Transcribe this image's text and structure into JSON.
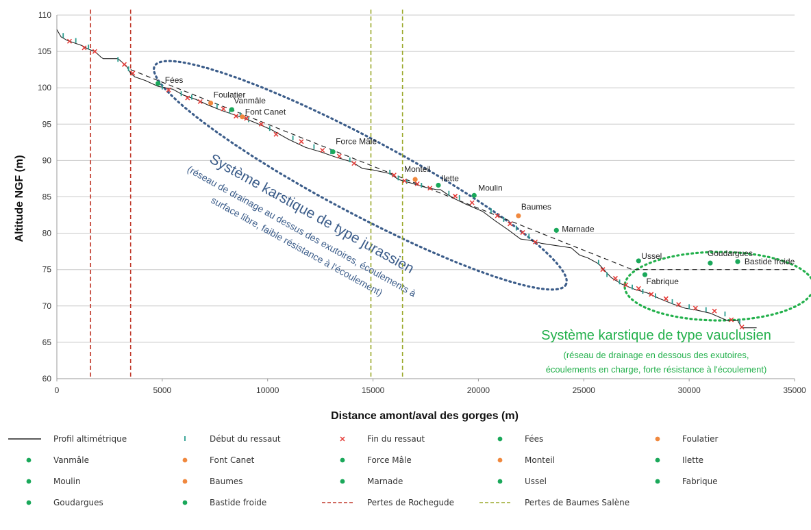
{
  "chart_data": {
    "type": "line",
    "xlabel": "Distance amont/aval des gorges (m)",
    "ylabel": "Altitude NGF (m)",
    "xlim": [
      0,
      35000
    ],
    "ylim": [
      60,
      110
    ],
    "xticks": [
      0,
      5000,
      10000,
      15000,
      20000,
      25000,
      30000,
      35000
    ],
    "xtick_labels": [
      "0",
      "5000",
      "10000",
      "15000",
      "20000",
      "25000",
      "30000",
      "35000"
    ],
    "yticks": [
      60,
      65,
      70,
      75,
      80,
      85,
      90,
      95,
      100,
      105,
      110
    ],
    "ytick_labels": [
      "60",
      "65",
      "70",
      "75",
      "80",
      "85",
      "90",
      "95",
      "100",
      "105",
      "110"
    ],
    "grid": "horizontal",
    "legend_position": "bottom",
    "colors": {
      "profile": "#222222",
      "debut": "#2a9d8f",
      "fin": "#e53935",
      "green": "#1aa85a",
      "orange": "#f0883e",
      "rochegude": "#c0392b",
      "baumes_salene": "#9aa82a",
      "jura_annotation": "#3c5d8a",
      "vauclusien_annotation": "#22b04b",
      "trend": "#222222"
    },
    "profile": {
      "name": "Profil altimétrique",
      "x": [
        0,
        200,
        500,
        800,
        1200,
        1500,
        1800,
        2100,
        2200,
        2900,
        3300,
        3500,
        3700,
        4200,
        4800,
        5500,
        6000,
        6600,
        7200,
        7800,
        8400,
        8900,
        9500,
        10200,
        11000,
        11800,
        12500,
        13200,
        14000,
        14500,
        15000,
        15800,
        16200,
        16800,
        17500,
        18000,
        18200,
        18500,
        18900,
        19400,
        20200,
        20800,
        21400,
        22000,
        22500,
        23000,
        23700,
        24400,
        24800,
        25200,
        25700,
        26300,
        26800,
        27400,
        28000,
        28600,
        29200,
        29800,
        30400,
        31000,
        31800,
        32300,
        32500,
        33200
      ],
      "y": [
        108,
        107,
        106.5,
        106.2,
        105.8,
        105.3,
        105,
        104.2,
        104,
        104,
        103,
        102,
        101.5,
        101,
        100.2,
        99.8,
        99,
        98.4,
        97.6,
        96.9,
        96.3,
        95.8,
        95.1,
        94.2,
        92.9,
        91.8,
        91.2,
        90.5,
        89.8,
        88.9,
        88.7,
        88.2,
        87.4,
        86.9,
        86.3,
        86,
        86,
        85.4,
        84.7,
        84,
        83,
        81.7,
        80.5,
        79.2,
        79,
        78.6,
        78.3,
        78,
        77,
        76.6,
        75.8,
        73.9,
        73,
        72.3,
        71.8,
        71,
        70.3,
        69.7,
        69.4,
        69,
        68,
        68,
        67,
        67
      ]
    },
    "debut_ressaut": {
      "name": "Début du ressaut",
      "x": [
        300,
        900,
        1500,
        2900,
        3400,
        5000,
        5900,
        6400,
        7600,
        8200,
        8700,
        9100,
        10100,
        11200,
        12200,
        13000,
        13900,
        15800,
        16200,
        16600,
        17300,
        18600,
        19100,
        20600,
        21200,
        21800,
        22400,
        25700,
        26100,
        26700,
        27300,
        27800,
        28400,
        29200,
        30000,
        30800,
        31700,
        32400
      ],
      "y": [
        107.2,
        106.5,
        105.6,
        103.9,
        102.6,
        100.1,
        99.2,
        98.7,
        97.5,
        96.8,
        96.3,
        95.6,
        94.4,
        93.1,
        91.9,
        91.2,
        90.1,
        88.4,
        87.6,
        87.1,
        86.6,
        85.5,
        84.9,
        83.1,
        81.9,
        80.7,
        79.6,
        76,
        74.3,
        73.3,
        72.6,
        72,
        71.4,
        70.6,
        69.9,
        69.5,
        68.9,
        67.9
      ]
    },
    "fin_ressaut": {
      "name": "Fin du ressaut",
      "x": [
        600,
        1300,
        1800,
        3200,
        3600,
        5300,
        6200,
        6800,
        7900,
        8500,
        9000,
        9700,
        10400,
        11600,
        12600,
        13400,
        14100,
        16000,
        16500,
        17100,
        17700,
        18900,
        19700,
        20900,
        21500,
        22100,
        22700,
        25900,
        26500,
        27000,
        27600,
        28200,
        28900,
        29500,
        30300,
        31200,
        32000,
        32500
      ],
      "y": [
        106.4,
        105.5,
        105,
        103.2,
        102,
        99.7,
        98.6,
        98.1,
        97.1,
        96.1,
        95.8,
        95,
        93.6,
        92.6,
        91.4,
        90.6,
        89.6,
        88,
        87.2,
        86.8,
        86.2,
        85.1,
        84.2,
        82.4,
        81.3,
        80.1,
        78.8,
        75,
        73.8,
        72.9,
        72.4,
        71.6,
        71,
        70.2,
        69.7,
        69.3,
        68.1,
        67.1
      ]
    },
    "sources": [
      {
        "name": "Fées",
        "label": "Fées",
        "x": 4800,
        "y": 100.6,
        "color": "#1aa85a"
      },
      {
        "name": "Foulatier",
        "label": "Foulatier",
        "x": 7300,
        "y": 97.9,
        "color": "#f0883e"
      },
      {
        "name": "Vanmâle",
        "label": "Vanmâle",
        "x": 8300,
        "y": 97,
        "color": "#1aa85a"
      },
      {
        "name": "Font Canet",
        "label": "Font Canet",
        "x": 8800,
        "y": 96,
        "color": "#f0883e"
      },
      {
        "name": "Force Mâle",
        "label": "Force Mâle",
        "x": 13100,
        "y": 91.2,
        "color": "#1aa85a"
      },
      {
        "name": "Monteil",
        "label": "Monteil",
        "x": 17000,
        "y": 87.4,
        "color": "#f0883e"
      },
      {
        "name": "Ilette",
        "label": "Ilette",
        "x": 18100,
        "y": 86.6,
        "color": "#1aa85a"
      },
      {
        "name": "Moulin",
        "label": "Moulin",
        "x": 19800,
        "y": 85.2,
        "color": "#1aa85a"
      },
      {
        "name": "Baumes",
        "label": "Baumes",
        "x": 21900,
        "y": 82.4,
        "color": "#f0883e"
      },
      {
        "name": "Marnade",
        "label": "Marnade",
        "x": 23700,
        "y": 80.4,
        "color": "#1aa85a"
      },
      {
        "name": "Ussel",
        "label": "Ussel",
        "x": 27600,
        "y": 76.2,
        "color": "#1aa85a"
      },
      {
        "name": "Fabrique",
        "label": "Fabrique",
        "x": 27900,
        "y": 74.3,
        "color": "#1aa85a"
      },
      {
        "name": "Goudargues",
        "label": "Goudargues",
        "x": 31000,
        "y": 75.9,
        "color": "#1aa85a"
      },
      {
        "name": "Bastide froide",
        "label": "Bastide froide",
        "x": 32300,
        "y": 76.1,
        "color": "#1aa85a"
      }
    ],
    "trend_line": {
      "x": [
        3500,
        27300,
        35000
      ],
      "y": [
        102.5,
        75,
        75
      ]
    },
    "pertes_rochegude": {
      "name": "Pertes de Rochegude",
      "x": [
        1600,
        3500
      ]
    },
    "pertes_baumes_salene": {
      "name": "Pertes de Baumes Salène",
      "x": [
        14900,
        16400
      ]
    },
    "annotations": {
      "jura_title": "Système karstique de type jurassien",
      "jura_sub1": "(réseau de drainage au dessus des exutoires, écoulements à",
      "jura_sub2": "surface libre, faible résistance à l'écoulement)",
      "vauc_title": "Système karstique de type vauclusien",
      "vauc_sub1": "(réseau de drainage en dessous des exutoires,",
      "vauc_sub2": "écoulements en charge, forte résistance à l'écoulement)"
    }
  },
  "legend": [
    {
      "label": "Profil altimétrique",
      "kind": "line",
      "color": "#222222"
    },
    {
      "label": "Début du ressaut",
      "kind": "tick",
      "color": "#2a9d8f"
    },
    {
      "label": "Fin du ressaut",
      "kind": "cross",
      "color": "#e53935"
    },
    {
      "label": "Fées",
      "kind": "dot",
      "color": "#1aa85a"
    },
    {
      "label": "Foulatier",
      "kind": "dot",
      "color": "#f0883e"
    },
    {
      "label": "Vanmâle",
      "kind": "dot",
      "color": "#1aa85a"
    },
    {
      "label": "Font Canet",
      "kind": "dot",
      "color": "#f0883e"
    },
    {
      "label": "Force Mâle",
      "kind": "dot",
      "color": "#1aa85a"
    },
    {
      "label": "Monteil",
      "kind": "dot",
      "color": "#f0883e"
    },
    {
      "label": "Ilette",
      "kind": "dot",
      "color": "#1aa85a"
    },
    {
      "label": "Moulin",
      "kind": "dot",
      "color": "#1aa85a"
    },
    {
      "label": "Baumes",
      "kind": "dot",
      "color": "#f0883e"
    },
    {
      "label": "Marnade",
      "kind": "dot",
      "color": "#1aa85a"
    },
    {
      "label": "Ussel",
      "kind": "dot",
      "color": "#1aa85a"
    },
    {
      "label": "Fabrique",
      "kind": "dot",
      "color": "#1aa85a"
    },
    {
      "label": "Goudargues",
      "kind": "dot",
      "color": "#1aa85a"
    },
    {
      "label": "Bastide froide",
      "kind": "dot",
      "color": "#1aa85a"
    },
    {
      "label": "Pertes de Rochegude",
      "kind": "dash",
      "color": "#c0392b"
    },
    {
      "label": "Pertes de Baumes Salène",
      "kind": "dash",
      "color": "#9aa82a"
    }
  ]
}
